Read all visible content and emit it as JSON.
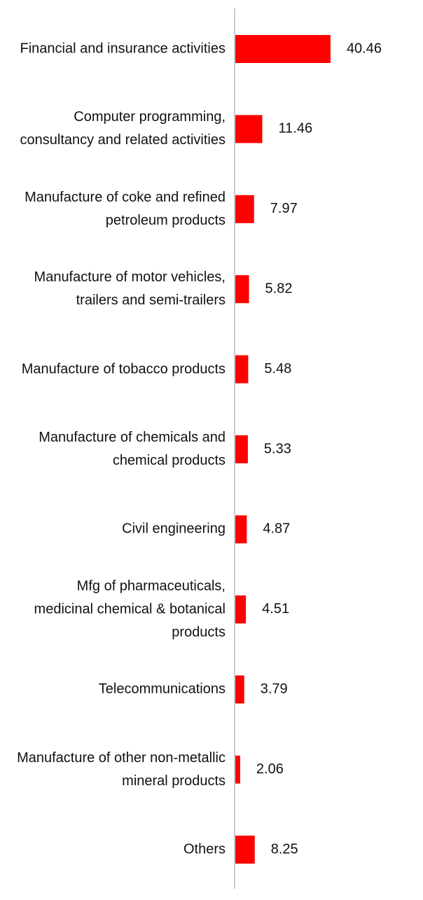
{
  "chart_data": {
    "type": "bar",
    "orientation": "horizontal",
    "color": "#ff0000",
    "categories": [
      "Financial and insurance activities",
      "Computer programming, consultancy and related activities",
      "Manufacture of coke and refined petroleum products",
      "Manufacture of motor vehicles, trailers and semi-trailers",
      "Manufacture of tobacco products",
      "Manufacture of chemicals and chemical products",
      "Civil engineering",
      "Mfg of pharmaceuticals, medicinal chemical & botanical products",
      "Telecommunications",
      "Manufacture of other non-metallic mineral products",
      "Others"
    ],
    "values": [
      40.46,
      11.46,
      7.97,
      5.82,
      5.48,
      5.33,
      4.87,
      4.51,
      3.79,
      2.06,
      8.25
    ]
  }
}
